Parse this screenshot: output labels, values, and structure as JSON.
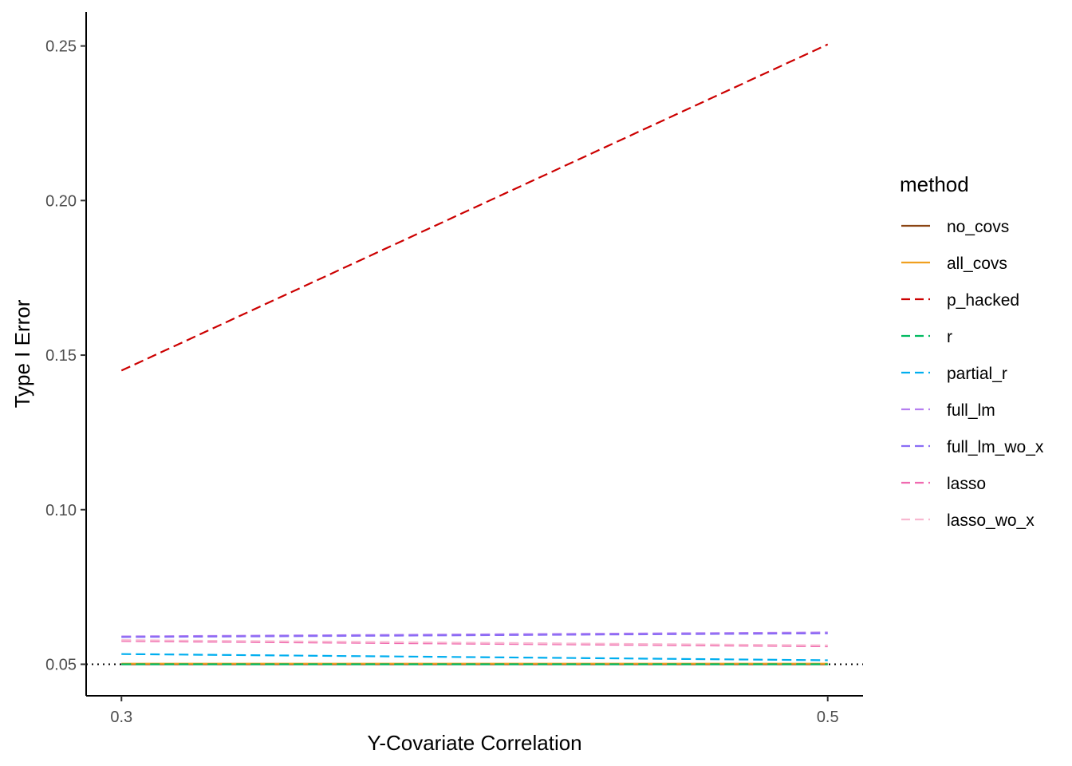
{
  "chart_data": {
    "type": "line",
    "title": "",
    "xlabel": "Y-Covariate Correlation",
    "ylabel": "Type I Error",
    "x": [
      0.3,
      0.5
    ],
    "xticks": [
      "0.3",
      "0.5"
    ],
    "xlim": [
      0.29,
      0.51
    ],
    "yticks": [
      "0.05",
      "0.10",
      "0.15",
      "0.20",
      "0.25"
    ],
    "ylim": [
      0.0398,
      0.261
    ],
    "grid": false,
    "legend_title": "method",
    "legend_position": "right",
    "reference_line": {
      "y": 0.05,
      "style": "dotted",
      "color": "#000000"
    },
    "series": [
      {
        "name": "no_covs",
        "color": "#8B4513",
        "dash": "solid",
        "values": [
          0.05,
          0.05
        ]
      },
      {
        "name": "all_covs",
        "color": "#F0A020",
        "dash": "solid",
        "values": [
          0.0502,
          0.0502
        ]
      },
      {
        "name": "p_hacked",
        "color": "#CC0000",
        "dash": "dashed",
        "values": [
          0.145,
          0.2505
        ]
      },
      {
        "name": "r",
        "color": "#00BA60",
        "dash": "dashed",
        "values": [
          0.05,
          0.05
        ]
      },
      {
        "name": "partial_r",
        "color": "#00AEEF",
        "dash": "dashed",
        "values": [
          0.0533,
          0.0513
        ]
      },
      {
        "name": "full_lm",
        "color": "#B57EF0",
        "dash": "dashed",
        "values": [
          0.059,
          0.0603
        ]
      },
      {
        "name": "full_lm_wo_x",
        "color": "#8A6CF5",
        "dash": "dashed",
        "values": [
          0.0588,
          0.06
        ]
      },
      {
        "name": "lasso",
        "color": "#F06AB0",
        "dash": "dashed",
        "values": [
          0.0575,
          0.0558
        ]
      },
      {
        "name": "lasso_wo_x",
        "color": "#F8B8D0",
        "dash": "dashed",
        "values": [
          0.0578,
          0.0561
        ]
      }
    ]
  }
}
